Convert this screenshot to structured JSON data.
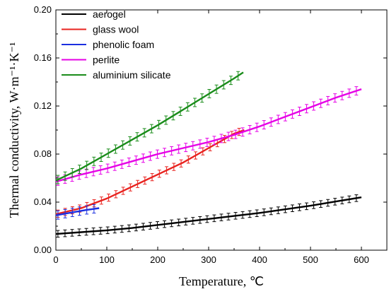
{
  "chart_data": {
    "type": "line",
    "title": "",
    "xlabel": "Temperature, ℃",
    "ylabel": "Thermal conductivity, W·m⁻¹·K⁻¹",
    "xlim": [
      0,
      650
    ],
    "ylim": [
      0,
      0.2
    ],
    "xticks": [
      0,
      100,
      200,
      300,
      400,
      500,
      600
    ],
    "yticks": [
      0.0,
      0.04,
      0.08,
      0.12,
      0.16,
      0.2
    ],
    "ytick_labels": [
      "0.00",
      "0.04",
      "0.08",
      "0.12",
      "0.16",
      "0.20"
    ],
    "grid": false,
    "legend_position": "top-left",
    "series": [
      {
        "name": "aerogel",
        "color": "#000000",
        "x": [
          0,
          50,
          100,
          150,
          200,
          250,
          300,
          350,
          400,
          450,
          500,
          550,
          600
        ],
        "y": [
          0.0135,
          0.015,
          0.0165,
          0.0185,
          0.021,
          0.0235,
          0.026,
          0.0285,
          0.031,
          0.034,
          0.037,
          0.0405,
          0.044
        ],
        "err": 0.0028
      },
      {
        "name": "glass wool",
        "color": "#e8231f",
        "x": [
          0,
          50,
          100,
          150,
          200,
          250,
          300,
          350,
          370
        ],
        "y": [
          0.03,
          0.035,
          0.043,
          0.053,
          0.063,
          0.073,
          0.085,
          0.097,
          0.1
        ],
        "err": 0.003
      },
      {
        "name": "phenolic foam",
        "color": "#1b2fe0",
        "x": [
          0,
          20,
          40,
          60,
          85
        ],
        "y": [
          0.029,
          0.0305,
          0.032,
          0.0335,
          0.035
        ],
        "err": 0.0035
      },
      {
        "name": "perlite",
        "color": "#e600e6",
        "x": [
          0,
          50,
          100,
          150,
          200,
          250,
          300,
          350,
          400,
          450,
          500,
          550,
          600
        ],
        "y": [
          0.057,
          0.063,
          0.068,
          0.074,
          0.08,
          0.085,
          0.09,
          0.096,
          0.103,
          0.111,
          0.119,
          0.127,
          0.134
        ],
        "err": 0.0035
      },
      {
        "name": "aluminium silicate",
        "color": "#1a8c1a",
        "x": [
          0,
          50,
          100,
          150,
          200,
          250,
          300,
          350,
          368
        ],
        "y": [
          0.058,
          0.068,
          0.08,
          0.092,
          0.104,
          0.117,
          0.13,
          0.143,
          0.148
        ],
        "err": 0.0035
      }
    ]
  }
}
